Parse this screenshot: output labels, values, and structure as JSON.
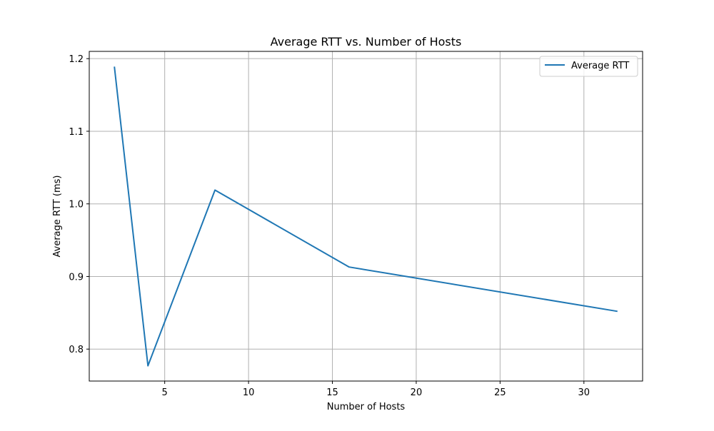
{
  "chart_data": {
    "type": "line",
    "title": "Average RTT vs. Number of Hosts",
    "xlabel": "Number of Hosts",
    "ylabel": "Average RTT (ms)",
    "xlim": [
      0.5,
      33.5
    ],
    "ylim": [
      0.756,
      1.21
    ],
    "xticks": [
      5,
      10,
      15,
      20,
      25,
      30
    ],
    "yticks": [
      0.8,
      0.9,
      1.0,
      1.1,
      1.2
    ],
    "xtick_labels": [
      "5",
      "10",
      "15",
      "20",
      "25",
      "30"
    ],
    "ytick_labels": [
      "0.8",
      "0.9",
      "1.0",
      "1.1",
      "1.2"
    ],
    "grid": true,
    "legend_position": "top-right",
    "series": [
      {
        "name": "Average RTT",
        "color": "#1f77b4",
        "x": [
          2,
          4,
          8,
          16,
          32
        ],
        "y": [
          1.189,
          0.777,
          1.019,
          0.913,
          0.852
        ]
      }
    ]
  }
}
